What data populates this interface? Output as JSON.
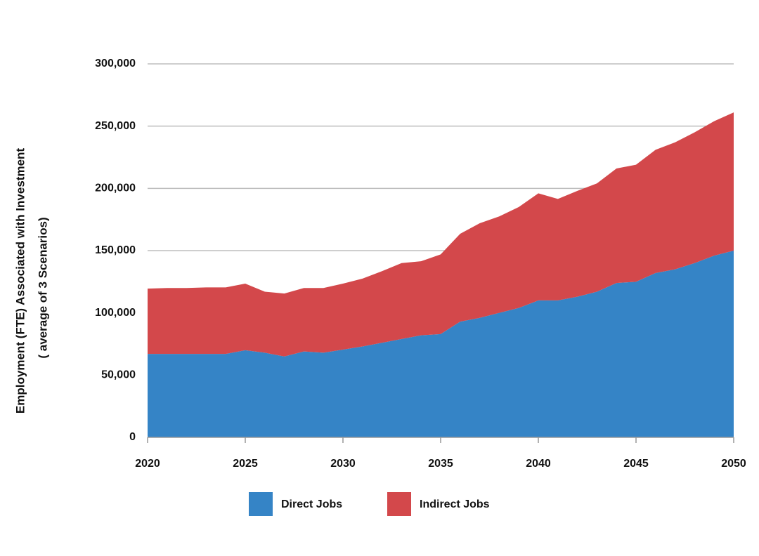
{
  "chart_data": {
    "type": "stacked-area",
    "y_label": [
      "Employment (FTE) Associated with Investment",
      "( average of 3 Scenarios)"
    ],
    "x": [
      2020,
      2021,
      2022,
      2023,
      2024,
      2025,
      2026,
      2027,
      2028,
      2029,
      2030,
      2031,
      2032,
      2033,
      2034,
      2035,
      2036,
      2037,
      2038,
      2039,
      2040,
      2041,
      2042,
      2043,
      2044,
      2045,
      2046,
      2047,
      2048,
      2049,
      2050
    ],
    "xlim": [
      2020,
      2050
    ],
    "xticks": [
      2020,
      2025,
      2030,
      2035,
      2040,
      2045,
      2050
    ],
    "ylim": [
      0,
      300000
    ],
    "yticks": [
      0,
      {
        "value": 50000,
        "label": "50,000"
      },
      {
        "value": 100000,
        "label": "100,000"
      },
      {
        "value": 150000,
        "label": "150,000"
      },
      {
        "value": 200000,
        "label": "200,000"
      },
      {
        "value": 250000,
        "label": "250,000"
      },
      {
        "value": 300000,
        "label": "300,000"
      }
    ],
    "grid": true,
    "legend": "bottom",
    "series": [
      {
        "name": "Direct Jobs",
        "color": "#3584c6",
        "values": [
          67000,
          67000,
          67000,
          67000,
          67000,
          70000,
          68000,
          65000,
          69000,
          68000,
          70500,
          73000,
          76000,
          79000,
          82000,
          83000,
          93000,
          96000,
          100000,
          104000,
          110000,
          110000,
          113000,
          117000,
          124000,
          125000,
          132000,
          135000,
          140000,
          146000,
          150000
        ]
      },
      {
        "name": "Indirect Jobs",
        "color": "#d3484b",
        "values": [
          52500,
          53000,
          53000,
          53500,
          53500,
          53500,
          49000,
          50500,
          51000,
          52000,
          53000,
          54500,
          57500,
          61000,
          59500,
          64000,
          70500,
          76000,
          77500,
          81000,
          86000,
          81500,
          85000,
          87000,
          92000,
          94000,
          99000,
          102000,
          105000,
          108000,
          111000
        ]
      }
    ]
  }
}
